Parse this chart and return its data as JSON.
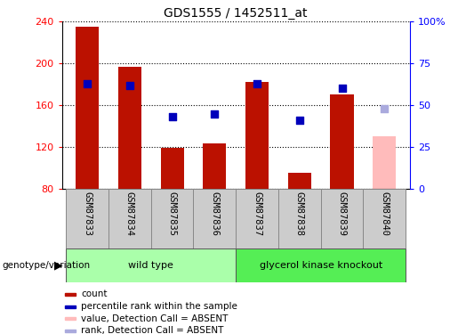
{
  "title": "GDS1555 / 1452511_at",
  "samples": [
    "GSM87833",
    "GSM87834",
    "GSM87835",
    "GSM87836",
    "GSM87837",
    "GSM87838",
    "GSM87839",
    "GSM87840"
  ],
  "bar_values": [
    235,
    197,
    119,
    123,
    182,
    95,
    170,
    130
  ],
  "bar_colors": [
    "#bb1100",
    "#bb1100",
    "#bb1100",
    "#bb1100",
    "#bb1100",
    "#bb1100",
    "#bb1100",
    "#ffbbbb"
  ],
  "rank_values": [
    63,
    62,
    43,
    45,
    63,
    41,
    60,
    48
  ],
  "rank_marker_colors": [
    "#0000bb",
    "#0000bb",
    "#0000bb",
    "#0000bb",
    "#0000bb",
    "#0000bb",
    "#0000bb",
    "#aaaadd"
  ],
  "absent_flags": [
    false,
    false,
    false,
    false,
    false,
    false,
    false,
    true
  ],
  "ymin": 80,
  "ymax": 240,
  "yticks_left": [
    80,
    120,
    160,
    200,
    240
  ],
  "right_yticks": [
    0,
    25,
    50,
    75,
    100
  ],
  "right_yticklabels": [
    "0",
    "25",
    "50",
    "75",
    "100%"
  ],
  "groups": [
    {
      "label": "wild type",
      "start": 0,
      "end": 3,
      "color": "#aaffaa"
    },
    {
      "label": "glycerol kinase knockout",
      "start": 4,
      "end": 7,
      "color": "#55ee55"
    }
  ],
  "genotype_label": "genotype/variation",
  "legend_items": [
    {
      "label": "count",
      "color": "#bb1100"
    },
    {
      "label": "percentile rank within the sample",
      "color": "#0000bb"
    },
    {
      "label": "value, Detection Call = ABSENT",
      "color": "#ffbbbb"
    },
    {
      "label": "rank, Detection Call = ABSENT",
      "color": "#aaaadd"
    }
  ],
  "bar_width": 0.55,
  "fig_width": 5.15,
  "fig_height": 3.75,
  "dpi": 100
}
